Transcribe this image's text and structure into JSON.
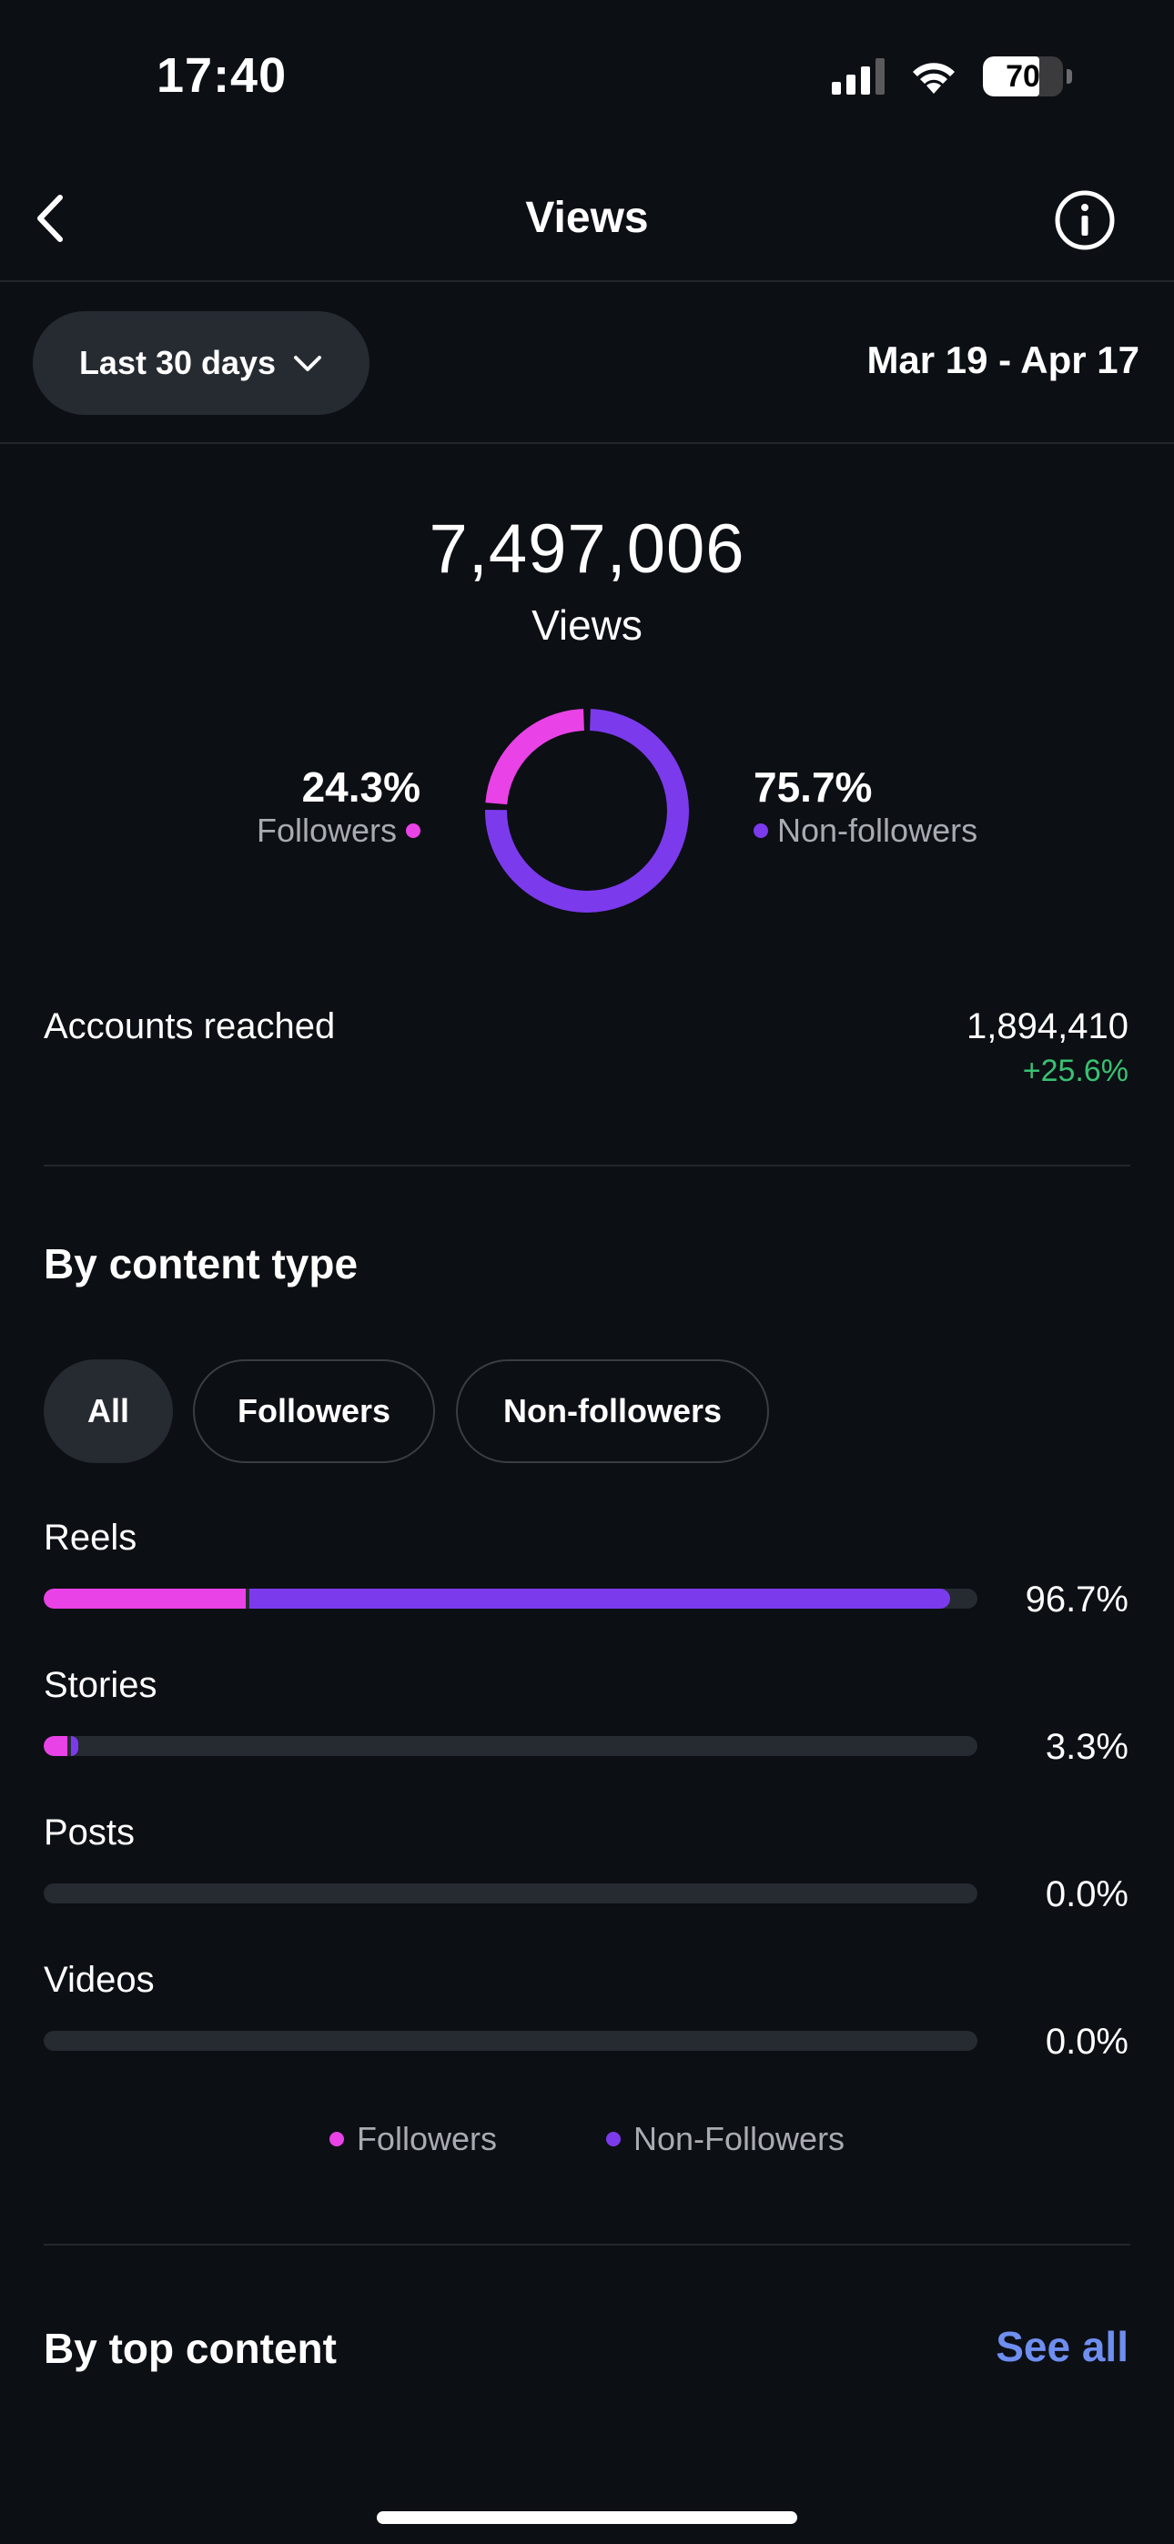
{
  "status_bar": {
    "time": "17:40",
    "battery": "70",
    "battery_level_percent": 70
  },
  "header": {
    "title": "Views",
    "back_icon": "chevron-left-icon",
    "info_icon": "info-icon"
  },
  "filter": {
    "range_label": "Last 30 days",
    "date_range": "Mar 19 - Apr 17"
  },
  "summary": {
    "views_value": "7,497,006",
    "views_label": "Views",
    "followers_pct": "24.3%",
    "followers_label": "Followers",
    "followers_share": 24.3,
    "non_followers_pct": "75.7%",
    "non_followers_label": "Non-followers",
    "non_followers_share": 75.7
  },
  "accounts": {
    "label": "Accounts reached",
    "value": "1,894,410",
    "change": "+25.6%"
  },
  "content_type": {
    "title": "By content type",
    "chips": [
      "All",
      "Followers",
      "Non-followers"
    ],
    "active_chip": 0,
    "rows": [
      {
        "label": "Reels",
        "pct": "96.7%",
        "followers_share": 21.6,
        "non_followers_share": 75.1
      },
      {
        "label": "Stories",
        "pct": "3.3%",
        "followers_share": 2.5,
        "non_followers_share": 0.8
      },
      {
        "label": "Posts",
        "pct": "0.0%",
        "followers_share": 0,
        "non_followers_share": 0
      },
      {
        "label": "Videos",
        "pct": "0.0%",
        "followers_share": 0,
        "non_followers_share": 0
      }
    ],
    "legend": {
      "followers": "Followers",
      "non_followers": "Non-Followers"
    }
  },
  "top_content": {
    "title": "By top content",
    "see_all": "See all"
  },
  "colors": {
    "followers": "#e942e6",
    "non_followers": "#7c3aed",
    "positive": "#38c172",
    "link": "#6e8ef0"
  }
}
